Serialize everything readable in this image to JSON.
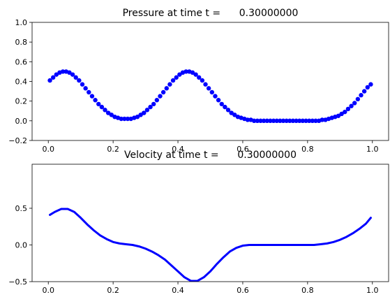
{
  "figure": {
    "background": "#ffffff",
    "line_color": "#0000ff"
  },
  "chart_data": [
    {
      "type": "scatter",
      "title": "Pressure at time t =      0.30000000",
      "xlabel": "",
      "ylabel": "",
      "xlim": [
        -0.05,
        1.05
      ],
      "ylim": [
        -0.2,
        1.0
      ],
      "xticks": [
        0.0,
        0.2,
        0.4,
        0.6,
        0.8,
        1.0
      ],
      "xtick_labels": [
        "0.0",
        "0.2",
        "0.4",
        "0.6",
        "0.8",
        "1.0"
      ],
      "yticks": [
        -0.2,
        0.0,
        0.2,
        0.4,
        0.6,
        0.8,
        1.0
      ],
      "ytick_labels": [
        "−0.2",
        "0.0",
        "0.2",
        "0.4",
        "0.6",
        "0.8",
        "1.0"
      ],
      "grid": false,
      "color": "#0000ff",
      "marker": "circle",
      "series": [
        {
          "x": [
            0.005,
            0.015,
            0.025,
            0.035,
            0.045,
            0.055,
            0.065,
            0.075,
            0.085,
            0.095,
            0.105,
            0.115,
            0.125,
            0.135,
            0.145,
            0.155,
            0.165,
            0.175,
            0.185,
            0.195,
            0.205,
            0.215,
            0.225,
            0.235,
            0.245,
            0.255,
            0.265,
            0.275,
            0.285,
            0.295,
            0.305,
            0.315,
            0.325,
            0.335,
            0.345,
            0.355,
            0.365,
            0.375,
            0.385,
            0.395,
            0.405,
            0.415,
            0.425,
            0.435,
            0.445,
            0.455,
            0.465,
            0.475,
            0.485,
            0.495,
            0.505,
            0.515,
            0.525,
            0.535,
            0.545,
            0.555,
            0.565,
            0.575,
            0.585,
            0.595,
            0.605,
            0.615,
            0.625,
            0.635,
            0.645,
            0.655,
            0.665,
            0.675,
            0.685,
            0.695,
            0.705,
            0.715,
            0.725,
            0.735,
            0.745,
            0.755,
            0.765,
            0.775,
            0.785,
            0.795,
            0.805,
            0.815,
            0.825,
            0.835,
            0.845,
            0.855,
            0.865,
            0.875,
            0.885,
            0.895,
            0.905,
            0.915,
            0.925,
            0.935,
            0.945,
            0.955,
            0.965,
            0.975,
            0.985,
            0.995
          ],
          "y": [
            0.41,
            0.44,
            0.47,
            0.49,
            0.5,
            0.5,
            0.49,
            0.47,
            0.44,
            0.41,
            0.37,
            0.33,
            0.29,
            0.25,
            0.21,
            0.17,
            0.14,
            0.11,
            0.08,
            0.06,
            0.04,
            0.03,
            0.02,
            0.02,
            0.02,
            0.02,
            0.03,
            0.04,
            0.06,
            0.08,
            0.11,
            0.14,
            0.17,
            0.21,
            0.25,
            0.29,
            0.33,
            0.37,
            0.41,
            0.44,
            0.47,
            0.49,
            0.5,
            0.5,
            0.49,
            0.47,
            0.44,
            0.41,
            0.37,
            0.33,
            0.29,
            0.25,
            0.21,
            0.17,
            0.14,
            0.11,
            0.08,
            0.06,
            0.04,
            0.03,
            0.02,
            0.01,
            0.01,
            0.0,
            0.0,
            0.0,
            0.0,
            0.0,
            0.0,
            0.0,
            0.0,
            0.0,
            0.0,
            0.0,
            0.0,
            0.0,
            0.0,
            0.0,
            0.0,
            0.0,
            0.0,
            0.0,
            0.0,
            0.0,
            0.01,
            0.01,
            0.02,
            0.03,
            0.04,
            0.05,
            0.07,
            0.09,
            0.12,
            0.15,
            0.18,
            0.22,
            0.26,
            0.3,
            0.34,
            0.37
          ]
        }
      ]
    },
    {
      "type": "line",
      "title": "Velocity at time t =      0.30000000",
      "xlabel": "",
      "ylabel": "",
      "xlim": [
        -0.05,
        1.05
      ],
      "ylim": [
        -0.5,
        1.1
      ],
      "xticks": [
        0.0,
        0.2,
        0.4,
        0.6,
        0.8,
        1.0
      ],
      "xtick_labels": [
        "0.0",
        "0.2",
        "0.4",
        "0.6",
        "0.8",
        "1.0"
      ],
      "yticks": [
        -0.5,
        0.0,
        0.5
      ],
      "ytick_labels": [
        "−0.5",
        "0.0",
        "0.5"
      ],
      "grid": false,
      "color": "#0000ff",
      "series": [
        {
          "x": [
            0.005,
            0.02,
            0.04,
            0.06,
            0.08,
            0.1,
            0.12,
            0.14,
            0.16,
            0.18,
            0.2,
            0.22,
            0.24,
            0.26,
            0.28,
            0.3,
            0.32,
            0.34,
            0.36,
            0.38,
            0.4,
            0.42,
            0.44,
            0.46,
            0.48,
            0.5,
            0.52,
            0.54,
            0.56,
            0.58,
            0.6,
            0.62,
            0.64,
            0.66,
            0.68,
            0.7,
            0.72,
            0.74,
            0.76,
            0.78,
            0.8,
            0.82,
            0.84,
            0.86,
            0.88,
            0.9,
            0.92,
            0.94,
            0.96,
            0.98,
            0.995
          ],
          "y": [
            0.41,
            0.45,
            0.49,
            0.49,
            0.45,
            0.37,
            0.28,
            0.2,
            0.13,
            0.08,
            0.04,
            0.02,
            0.01,
            0.0,
            -0.02,
            -0.05,
            -0.09,
            -0.14,
            -0.2,
            -0.28,
            -0.36,
            -0.44,
            -0.49,
            -0.49,
            -0.44,
            -0.36,
            -0.26,
            -0.17,
            -0.09,
            -0.04,
            -0.01,
            0.0,
            0.0,
            0.0,
            0.0,
            0.0,
            0.0,
            0.0,
            0.0,
            0.0,
            0.0,
            0.0,
            0.01,
            0.02,
            0.04,
            0.07,
            0.11,
            0.16,
            0.22,
            0.29,
            0.37
          ]
        }
      ]
    }
  ]
}
